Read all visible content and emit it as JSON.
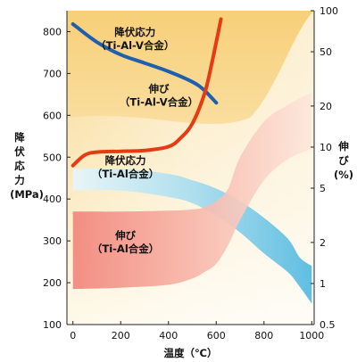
{
  "chart_data": {
    "type": "line",
    "xlabel": "温度（℃）",
    "ylabel_left": [
      "降",
      "伏",
      "応",
      "力",
      "(MPa)"
    ],
    "ylabel_right": [
      "伸",
      "び",
      "(%)"
    ],
    "xlim": [
      -25,
      1010
    ],
    "ylim_left": [
      100,
      850
    ],
    "ylim_right": [
      0.5,
      100
    ],
    "right_scale": "log",
    "x_ticks": [
      "0",
      "200",
      "400",
      "600",
      "800",
      "1000"
    ],
    "y_left_ticks": [
      "100",
      "200",
      "300",
      "400",
      "500",
      "600",
      "700",
      "800"
    ],
    "y_right_ticks": [
      "0.5",
      "1",
      "2",
      "5",
      "10",
      "20",
      "50",
      "100"
    ],
    "series": [
      {
        "name": "降伏応力（Ti-Al-V合金）",
        "axis": "left",
        "style": "line",
        "color": "#1f5fb0",
        "x": [
          0,
          100,
          200,
          300,
          400,
          500,
          550,
          600
        ],
        "y": [
          818,
          775,
          745,
          725,
          705,
          680,
          660,
          630
        ]
      },
      {
        "name": "伸び（Ti-Al-V合金）",
        "axis": "left",
        "style": "line",
        "color": "#e63a12",
        "x": [
          0,
          50,
          100,
          200,
          300,
          400,
          450,
          500,
          550,
          580,
          620
        ],
        "y": [
          480,
          505,
          512,
          514,
          516,
          525,
          545,
          580,
          650,
          720,
          830
        ]
      },
      {
        "name": "降伏応力（Ti-Al合金）",
        "axis": "left",
        "style": "band",
        "color": "#62c4e6",
        "x": [
          0,
          200,
          400,
          500,
          600,
          700,
          800,
          900,
          950,
          1000
        ],
        "y_upper": [
          472,
          472,
          460,
          445,
          425,
          395,
          355,
          305,
          260,
          240
        ],
        "y_lower": [
          420,
          420,
          405,
          390,
          360,
          320,
          270,
          225,
          190,
          150
        ]
      },
      {
        "name": "伸び（Ti-Al合金）",
        "axis": "left",
        "style": "band",
        "color": "#f07a72",
        "x": [
          0,
          200,
          400,
          500,
          550,
          600,
          650,
          700,
          800,
          900,
          1000
        ],
        "y_upper": [
          370,
          370,
          372,
          375,
          380,
          395,
          425,
          500,
          585,
          625,
          655
        ],
        "y_lower": [
          185,
          188,
          195,
          210,
          225,
          245,
          290,
          350,
          445,
          495,
          520
        ]
      }
    ],
    "annotations": [
      {
        "lines": [
          "降伏応力",
          "（Ti-Al-V合金）"
        ],
        "x": 260,
        "y": 790
      },
      {
        "lines": [
          "伸び",
          "（Ti-Al-V合金）"
        ],
        "x": 360,
        "y": 655
      },
      {
        "lines": [
          "降伏応力",
          "（Ti-Al合金）"
        ],
        "x": 220,
        "y": 483
      },
      {
        "lines": [
          "伸び",
          "（Ti-Al合金）"
        ],
        "x": 220,
        "y": 305
      }
    ]
  }
}
